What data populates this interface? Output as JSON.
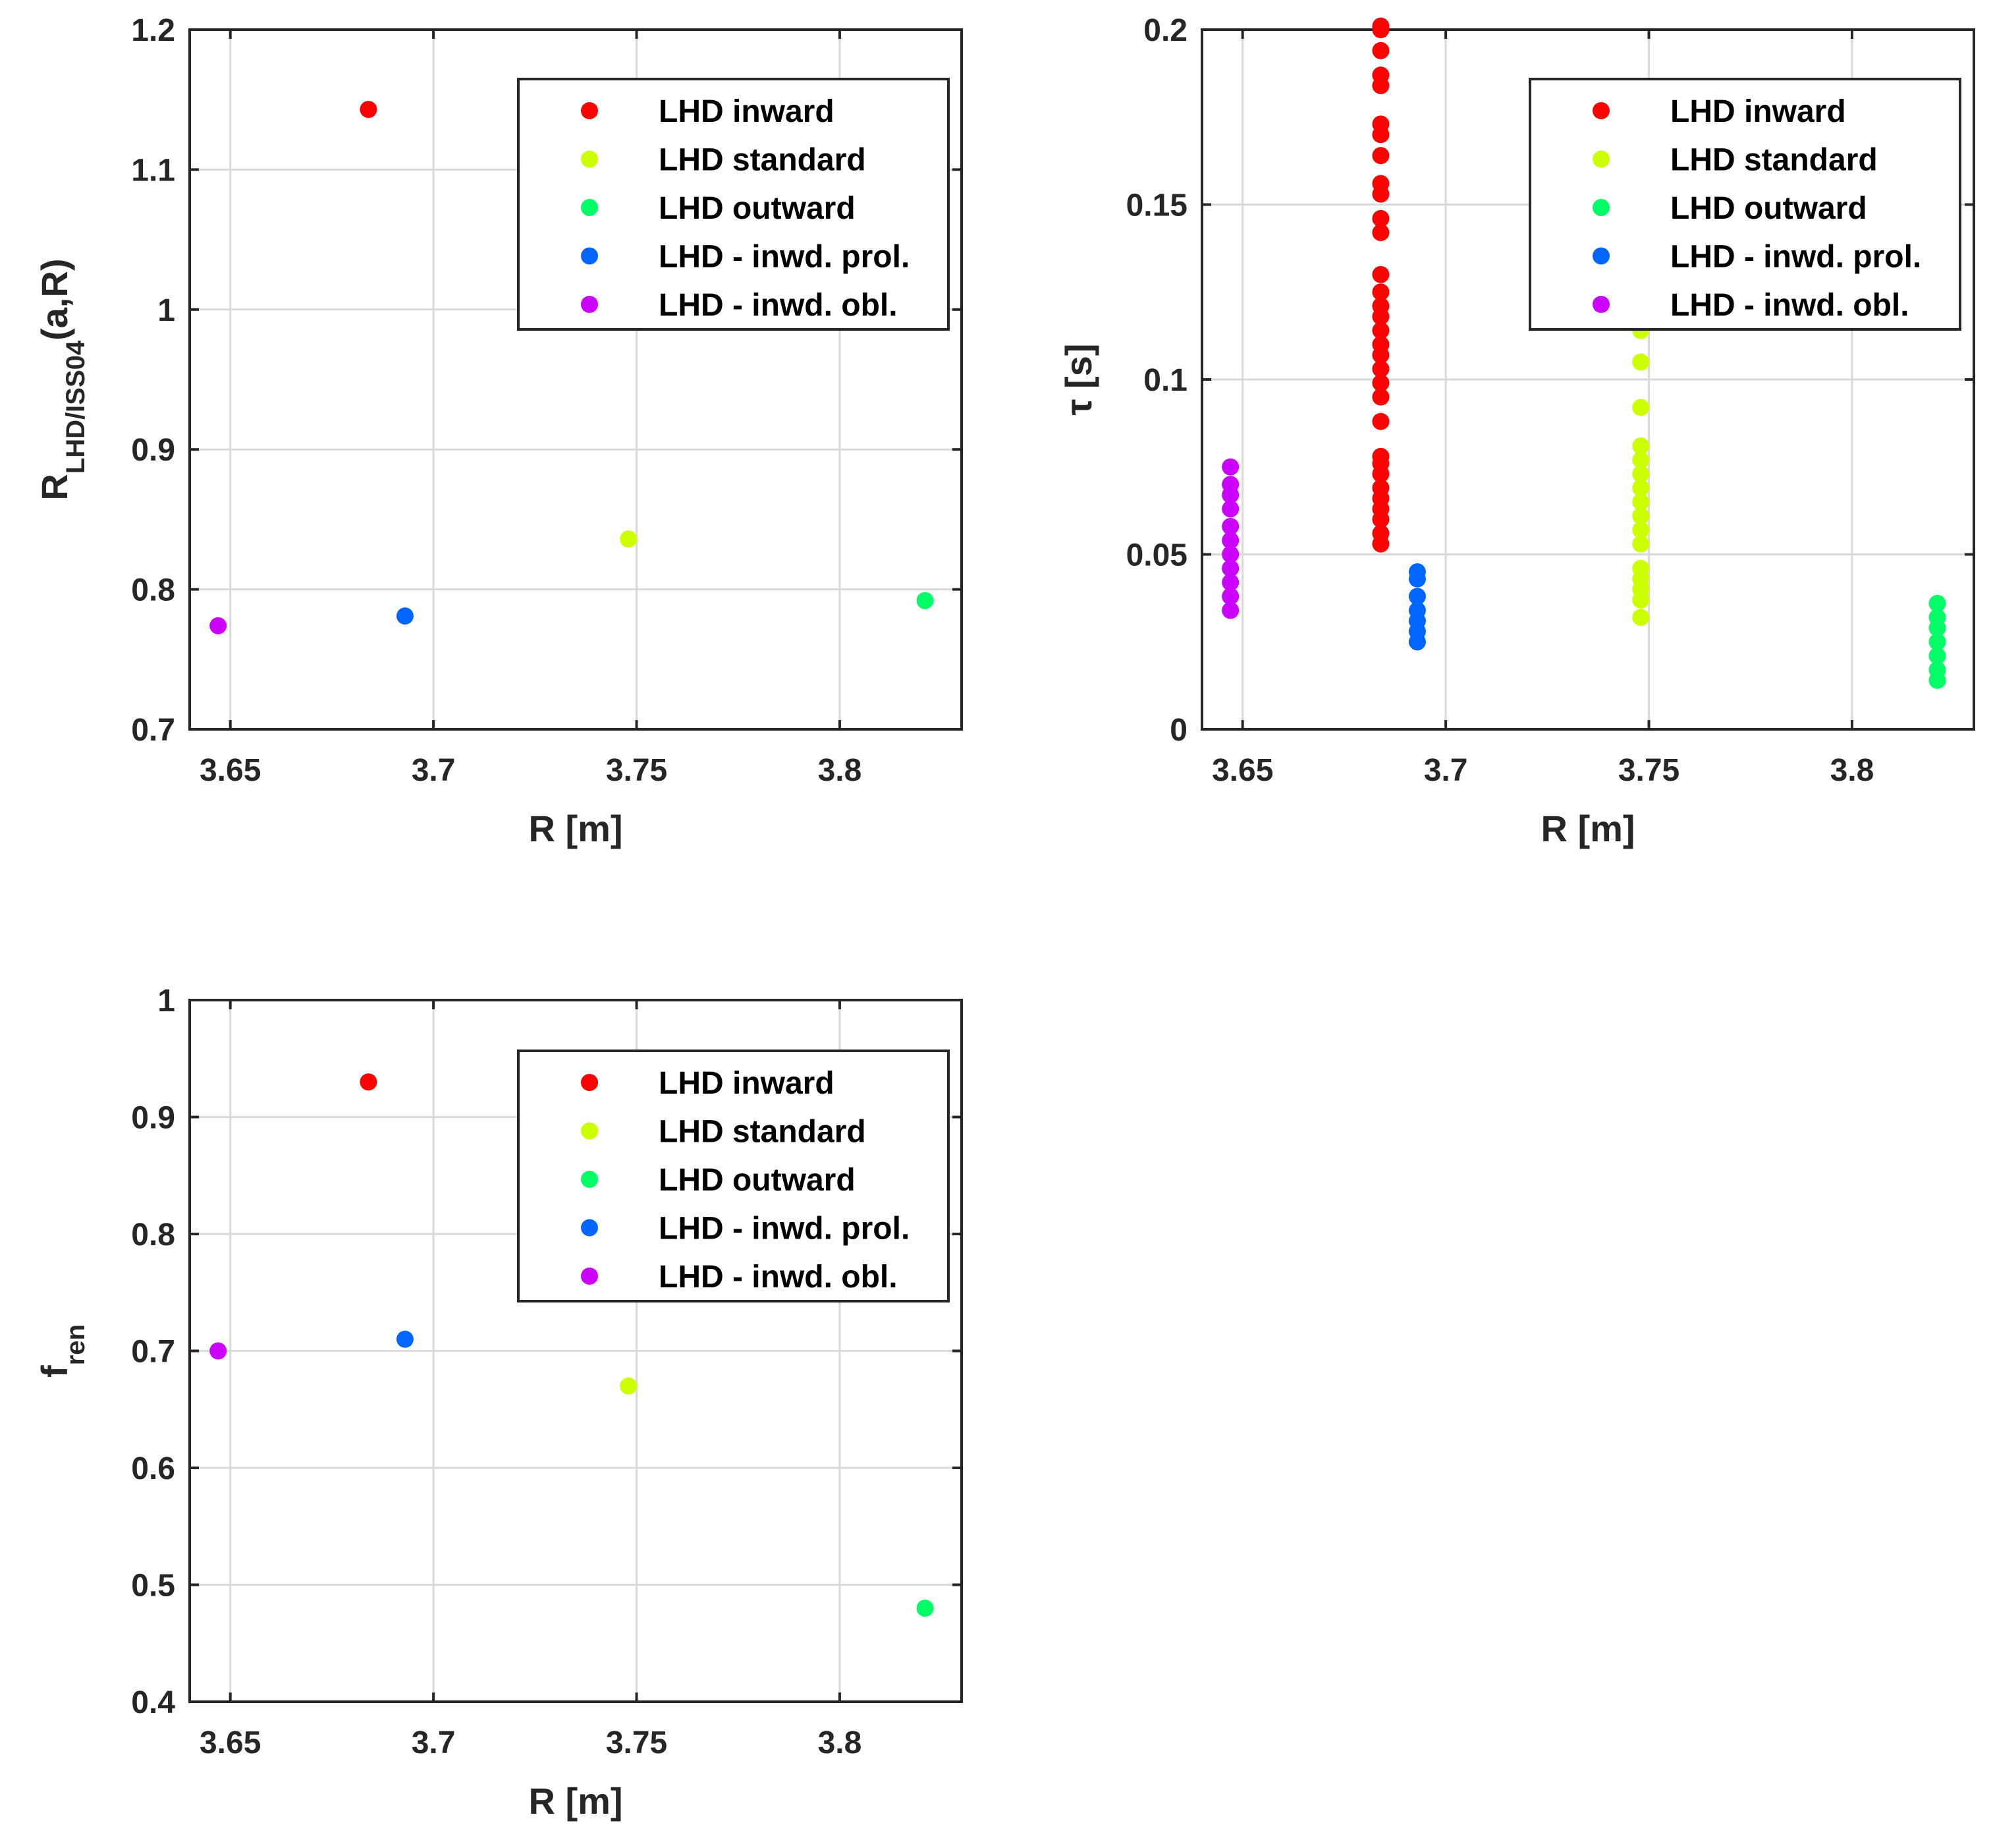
{
  "chart_data": [
    {
      "type": "scatter",
      "id": "top-left",
      "xlabel": "R [m]",
      "ylabel_main": "R",
      "ylabel_sub": "LHD/ISS04",
      "ylabel_suffix": "(a,R)",
      "xlim": [
        3.64,
        3.83
      ],
      "ylim": [
        0.7,
        1.2
      ],
      "xticks": [
        3.65,
        3.7,
        3.75,
        3.8
      ],
      "xtick_labels": [
        "3.65",
        "3.7",
        "3.75",
        "3.8"
      ],
      "yticks": [
        0.7,
        0.8,
        0.9,
        1.0,
        1.1,
        1.2
      ],
      "ytick_labels": [
        "0.7",
        "0.8",
        "0.9",
        "1",
        "1.1",
        "1.2"
      ],
      "grid": true,
      "legend_position": "top-right",
      "series": [
        {
          "name": "LHD inward",
          "color": "#ff0000",
          "x": [
            3.684
          ],
          "y": [
            1.143
          ]
        },
        {
          "name": "LHD standard",
          "color": "#ccff00",
          "x": [
            3.748
          ],
          "y": [
            0.836
          ]
        },
        {
          "name": "LHD outward",
          "color": "#00ff66",
          "x": [
            3.821
          ],
          "y": [
            0.792
          ]
        },
        {
          "name": "LHD - inwd. prol.",
          "color": "#0066ff",
          "x": [
            3.693
          ],
          "y": [
            0.781
          ]
        },
        {
          "name": "LHD - inwd. obl.",
          "color": "#cc00ff",
          "x": [
            3.647
          ],
          "y": [
            0.774
          ]
        }
      ]
    },
    {
      "type": "scatter",
      "id": "top-right",
      "xlabel": "R [m]",
      "ylabel_main": "τ [s]",
      "xlim": [
        3.64,
        3.83
      ],
      "ylim": [
        0,
        0.2
      ],
      "xticks": [
        3.65,
        3.7,
        3.75,
        3.8
      ],
      "xtick_labels": [
        "3.65",
        "3.7",
        "3.75",
        "3.8"
      ],
      "yticks": [
        0,
        0.05,
        0.1,
        0.15,
        0.2
      ],
      "ytick_labels": [
        "0",
        "0.05",
        "0.1",
        "0.15",
        "0.2"
      ],
      "grid": true,
      "legend_position": "top-right",
      "series": [
        {
          "name": "LHD inward",
          "color": "#ff0000",
          "x": 3.684,
          "y": [
            0.053,
            0.056,
            0.06,
            0.063,
            0.066,
            0.069,
            0.073,
            0.076,
            0.078,
            0.088,
            0.095,
            0.099,
            0.103,
            0.107,
            0.11,
            0.114,
            0.118,
            0.121,
            0.125,
            0.13,
            0.142,
            0.146,
            0.153,
            0.156,
            0.164,
            0.17,
            0.173,
            0.184,
            0.187,
            0.194,
            0.2,
            0.201
          ]
        },
        {
          "name": "LHD standard",
          "color": "#ccff00",
          "x": 3.748,
          "y": [
            0.032,
            0.037,
            0.04,
            0.043,
            0.046,
            0.053,
            0.057,
            0.061,
            0.065,
            0.069,
            0.073,
            0.077,
            0.081,
            0.092,
            0.105,
            0.114
          ]
        },
        {
          "name": "LHD outward",
          "color": "#00ff66",
          "x": 3.821,
          "y": [
            0.014,
            0.017,
            0.021,
            0.025,
            0.029,
            0.032,
            0.036
          ]
        },
        {
          "name": "LHD - inwd. prol.",
          "color": "#0066ff",
          "x": 3.693,
          "y": [
            0.025,
            0.028,
            0.031,
            0.034,
            0.038,
            0.043,
            0.045
          ]
        },
        {
          "name": "LHD - inwd. obl.",
          "color": "#cc00ff",
          "x": 3.647,
          "y": [
            0.034,
            0.038,
            0.042,
            0.046,
            0.05,
            0.054,
            0.058,
            0.063,
            0.067,
            0.07,
            0.075
          ]
        }
      ]
    },
    {
      "type": "scatter",
      "id": "bottom-left",
      "xlabel": "R [m]",
      "ylabel_main": "f",
      "ylabel_sub": "ren",
      "xlim": [
        3.64,
        3.83
      ],
      "ylim": [
        0.4,
        1.0
      ],
      "xticks": [
        3.65,
        3.7,
        3.75,
        3.8
      ],
      "xtick_labels": [
        "3.65",
        "3.7",
        "3.75",
        "3.8"
      ],
      "yticks": [
        0.4,
        0.5,
        0.6,
        0.7,
        0.8,
        0.9,
        1.0
      ],
      "ytick_labels": [
        "0.4",
        "0.5",
        "0.6",
        "0.7",
        "0.8",
        "0.9",
        "1"
      ],
      "grid": true,
      "legend_position": "top-right",
      "series": [
        {
          "name": "LHD inward",
          "color": "#ff0000",
          "x": [
            3.684
          ],
          "y": [
            0.93
          ]
        },
        {
          "name": "LHD standard",
          "color": "#ccff00",
          "x": [
            3.748
          ],
          "y": [
            0.67
          ]
        },
        {
          "name": "LHD outward",
          "color": "#00ff66",
          "x": [
            3.821
          ],
          "y": [
            0.48
          ]
        },
        {
          "name": "LHD - inwd. prol.",
          "color": "#0066ff",
          "x": [
            3.693
          ],
          "y": [
            0.71
          ]
        },
        {
          "name": "LHD - inwd. obl.",
          "color": "#cc00ff",
          "x": [
            3.647
          ],
          "y": [
            0.7
          ]
        }
      ]
    }
  ]
}
